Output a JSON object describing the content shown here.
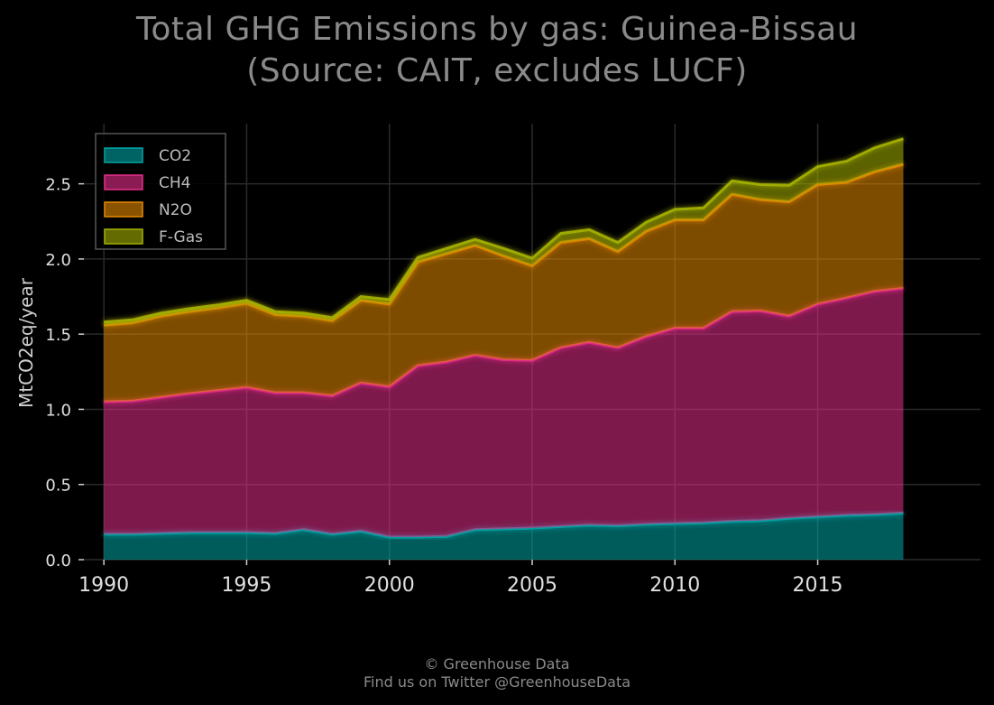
{
  "title_line1": "Total GHG Emissions by gas: Guinea-Bissau",
  "title_line2": "(Source: CAIT, excludes LUCF)",
  "footer_line1": "© Greenhouse Data",
  "footer_line2": "Find us on Twitter @GreenhouseData",
  "chart_data": {
    "type": "area",
    "stacked": true,
    "x": [
      1990,
      1991,
      1992,
      1993,
      1994,
      1995,
      1996,
      1997,
      1998,
      1999,
      2000,
      2001,
      2002,
      2003,
      2004,
      2005,
      2006,
      2007,
      2008,
      2009,
      2010,
      2011,
      2012,
      2013,
      2014,
      2015,
      2016,
      2017,
      2018
    ],
    "series": [
      {
        "name": "CO2",
        "color": "#00a6a6",
        "values": [
          0.17,
          0.17,
          0.175,
          0.18,
          0.18,
          0.18,
          0.175,
          0.2,
          0.17,
          0.19,
          0.15,
          0.15,
          0.155,
          0.2,
          0.205,
          0.21,
          0.22,
          0.23,
          0.225,
          0.235,
          0.24,
          0.245,
          0.255,
          0.26,
          0.275,
          0.285,
          0.295,
          0.3,
          0.31
        ]
      },
      {
        "name": "CH4",
        "color": "#e62e8a",
        "values": [
          0.88,
          0.885,
          0.905,
          0.925,
          0.945,
          0.965,
          0.935,
          0.91,
          0.92,
          0.985,
          1.0,
          1.14,
          1.16,
          1.16,
          1.125,
          1.115,
          1.19,
          1.215,
          1.185,
          1.25,
          1.3,
          1.295,
          1.395,
          1.395,
          1.345,
          1.415,
          1.445,
          1.485,
          1.495
        ]
      },
      {
        "name": "N2O",
        "color": "#e68a00",
        "values": [
          0.51,
          0.52,
          0.54,
          0.545,
          0.55,
          0.56,
          0.52,
          0.51,
          0.5,
          0.55,
          0.55,
          0.69,
          0.72,
          0.73,
          0.69,
          0.63,
          0.7,
          0.69,
          0.64,
          0.7,
          0.72,
          0.72,
          0.78,
          0.74,
          0.76,
          0.795,
          0.77,
          0.795,
          0.825
        ]
      },
      {
        "name": "F-Gas",
        "color": "#a6b300",
        "values": [
          0.02,
          0.02,
          0.02,
          0.02,
          0.02,
          0.02,
          0.02,
          0.02,
          0.02,
          0.025,
          0.03,
          0.03,
          0.035,
          0.04,
          0.05,
          0.05,
          0.06,
          0.06,
          0.06,
          0.06,
          0.07,
          0.08,
          0.09,
          0.1,
          0.11,
          0.12,
          0.14,
          0.16,
          0.17
        ]
      }
    ],
    "ylabel": "MtCO2eq/year",
    "xlabel": "",
    "xlim": [
      1989.3,
      2020.7
    ],
    "ylim": [
      0,
      2.9
    ],
    "xticks": [
      1990,
      1995,
      2000,
      2005,
      2010,
      2015
    ],
    "yticks": [
      0.0,
      0.5,
      1.0,
      1.5,
      2.0,
      2.5
    ],
    "ytick_labels": [
      "0.0",
      "0.5",
      "1.0",
      "1.5",
      "2.0",
      "2.5"
    ],
    "grid": true,
    "legend_position": "top-left"
  }
}
